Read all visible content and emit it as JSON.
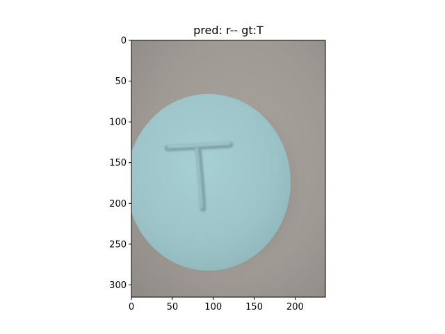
{
  "figure": {
    "title": "pred: r-- gt:T"
  },
  "image": {
    "subject": "round light blue pill imprinted with letter T",
    "imprint": "T",
    "pill_color": "#9ec5c9",
    "background_color": "#a19c96"
  },
  "axes": {
    "xlim": [
      0,
      237
    ],
    "ylim": [
      315,
      0
    ],
    "x_ticks": [
      {
        "value": 0,
        "label": "0"
      },
      {
        "value": 50,
        "label": "50"
      },
      {
        "value": 100,
        "label": "100"
      },
      {
        "value": 150,
        "label": "150"
      },
      {
        "value": 200,
        "label": "200"
      }
    ],
    "y_ticks": [
      {
        "value": 0,
        "label": "0"
      },
      {
        "value": 50,
        "label": "50"
      },
      {
        "value": 100,
        "label": "100"
      },
      {
        "value": 150,
        "label": "150"
      },
      {
        "value": 200,
        "label": "200"
      },
      {
        "value": 250,
        "label": "250"
      },
      {
        "value": 300,
        "label": "300"
      }
    ]
  }
}
